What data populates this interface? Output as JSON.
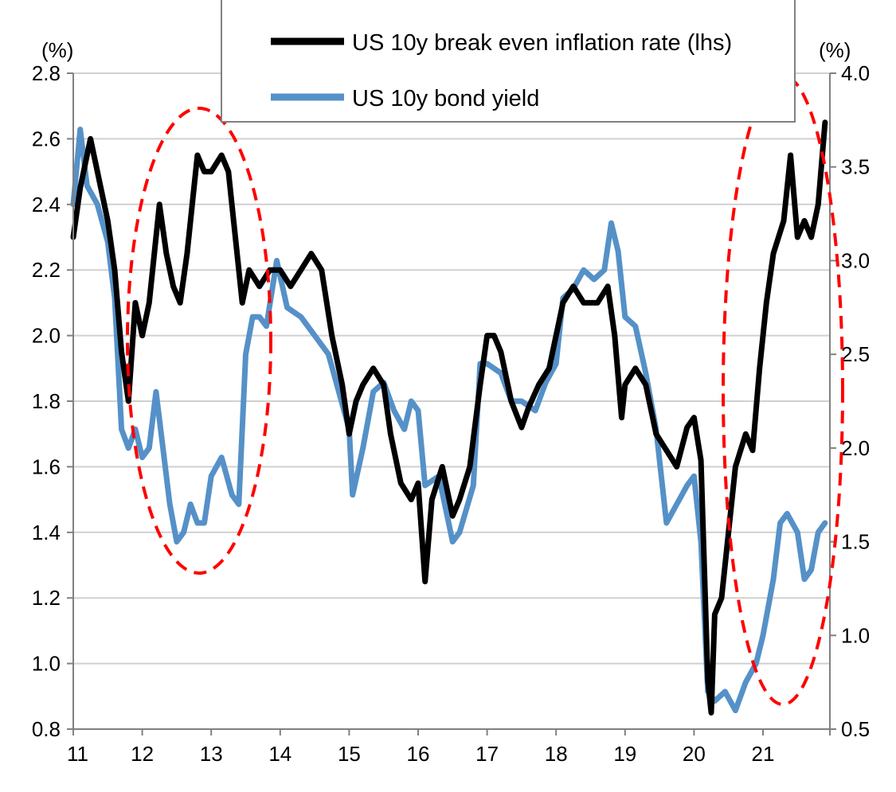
{
  "chart_data": {
    "type": "line",
    "title": "",
    "xlabel": "",
    "y_left_label": "(%)",
    "y_right_label": "(%)",
    "xlim": [
      11,
      21.97
    ],
    "ylim_left": [
      0.8,
      2.8
    ],
    "ylim_right": [
      0.5,
      4.0
    ],
    "x_ticks": [
      11,
      12,
      13,
      14,
      15,
      16,
      17,
      18,
      19,
      20,
      21
    ],
    "x_tick_labels": [
      "11",
      "12",
      "13",
      "14",
      "15",
      "16",
      "17",
      "18",
      "19",
      "20",
      "21"
    ],
    "y_left_ticks": [
      0.8,
      1.0,
      1.2,
      1.4,
      1.6,
      1.8,
      2.0,
      2.2,
      2.4,
      2.6,
      2.8
    ],
    "y_left_tick_labels": [
      "0.8",
      "1.0",
      "1.2",
      "1.4",
      "1.6",
      "1.8",
      "2.0",
      "2.2",
      "2.4",
      "2.6",
      "2.8"
    ],
    "y_right_ticks": [
      0.5,
      1.0,
      1.5,
      2.0,
      2.5,
      3.0,
      3.5,
      4.0
    ],
    "y_right_tick_labels": [
      "0.5",
      "1.0",
      "1.5",
      "2.0",
      "2.5",
      "3.0",
      "3.5",
      "4.0"
    ],
    "grid": "horizontal",
    "legend_position": "top-center",
    "series": [
      {
        "name": "US 10y break even inflation rate (lhs)",
        "axis": "left",
        "color": "#000000",
        "x": [
          11.0,
          11.1,
          11.25,
          11.35,
          11.5,
          11.6,
          11.7,
          11.8,
          11.9,
          12.0,
          12.1,
          12.2,
          12.25,
          12.35,
          12.45,
          12.55,
          12.65,
          12.75,
          12.8,
          12.9,
          13.0,
          13.15,
          13.25,
          13.35,
          13.45,
          13.55,
          13.7,
          13.85,
          14.0,
          14.15,
          14.3,
          14.45,
          14.6,
          14.75,
          14.9,
          15.0,
          15.1,
          15.2,
          15.35,
          15.5,
          15.6,
          15.75,
          15.9,
          16.0,
          16.1,
          16.2,
          16.35,
          16.5,
          16.6,
          16.75,
          16.9,
          17.0,
          17.1,
          17.2,
          17.35,
          17.5,
          17.6,
          17.75,
          17.9,
          18.0,
          18.1,
          18.25,
          18.4,
          18.6,
          18.75,
          18.85,
          18.95,
          19.0,
          19.15,
          19.3,
          19.45,
          19.6,
          19.75,
          19.9,
          20.0,
          20.1,
          20.2,
          20.25,
          20.3,
          20.4,
          20.5,
          20.6,
          20.75,
          20.85,
          20.95,
          21.05,
          21.15,
          21.3,
          21.4,
          21.5,
          21.6,
          21.7,
          21.8,
          21.9
        ],
        "y": [
          2.3,
          2.45,
          2.6,
          2.5,
          2.35,
          2.2,
          1.95,
          1.8,
          2.1,
          2.0,
          2.1,
          2.3,
          2.4,
          2.25,
          2.15,
          2.1,
          2.25,
          2.45,
          2.55,
          2.5,
          2.5,
          2.55,
          2.5,
          2.3,
          2.1,
          2.2,
          2.15,
          2.2,
          2.2,
          2.15,
          2.2,
          2.25,
          2.2,
          2.0,
          1.85,
          1.7,
          1.8,
          1.85,
          1.9,
          1.85,
          1.7,
          1.55,
          1.5,
          1.55,
          1.25,
          1.5,
          1.6,
          1.45,
          1.5,
          1.6,
          1.85,
          2.0,
          2.0,
          1.95,
          1.8,
          1.72,
          1.78,
          1.85,
          1.9,
          2.0,
          2.1,
          2.15,
          2.1,
          2.1,
          2.15,
          2.0,
          1.75,
          1.85,
          1.9,
          1.85,
          1.7,
          1.65,
          1.6,
          1.72,
          1.75,
          1.62,
          0.95,
          0.85,
          1.15,
          1.2,
          1.4,
          1.6,
          1.7,
          1.65,
          1.9,
          2.1,
          2.25,
          2.35,
          2.55,
          2.3,
          2.35,
          2.3,
          2.4,
          2.65
        ]
      },
      {
        "name": "US 10y bond yield",
        "axis": "right",
        "color": "#5591c8",
        "x": [
          11.0,
          11.1,
          11.2,
          11.35,
          11.5,
          11.6,
          11.7,
          11.8,
          11.9,
          12.0,
          12.1,
          12.2,
          12.3,
          12.4,
          12.5,
          12.6,
          12.7,
          12.8,
          12.9,
          13.0,
          13.15,
          13.3,
          13.4,
          13.5,
          13.6,
          13.7,
          13.8,
          13.95,
          14.1,
          14.3,
          14.5,
          14.7,
          14.85,
          15.0,
          15.05,
          15.2,
          15.35,
          15.5,
          15.65,
          15.8,
          15.9,
          16.0,
          16.1,
          16.3,
          16.5,
          16.6,
          16.8,
          16.9,
          17.0,
          17.2,
          17.35,
          17.5,
          17.7,
          17.85,
          18.0,
          18.1,
          18.25,
          18.4,
          18.55,
          18.7,
          18.8,
          18.9,
          19.0,
          19.15,
          19.3,
          19.45,
          19.6,
          19.75,
          19.9,
          20.0,
          20.1,
          20.2,
          20.3,
          20.45,
          20.6,
          20.75,
          20.9,
          21.0,
          21.15,
          21.25,
          21.35,
          21.5,
          21.6,
          21.7,
          21.8,
          21.9
        ],
        "y": [
          3.3,
          3.7,
          3.4,
          3.3,
          3.1,
          2.8,
          2.1,
          2.0,
          2.1,
          1.95,
          2.0,
          2.3,
          2.0,
          1.7,
          1.5,
          1.55,
          1.7,
          1.6,
          1.6,
          1.85,
          1.95,
          1.75,
          1.7,
          2.5,
          2.7,
          2.7,
          2.65,
          3.0,
          2.75,
          2.7,
          2.6,
          2.5,
          2.3,
          2.1,
          1.75,
          2.0,
          2.3,
          2.35,
          2.2,
          2.1,
          2.25,
          2.2,
          1.8,
          1.85,
          1.5,
          1.55,
          1.8,
          2.45,
          2.45,
          2.4,
          2.25,
          2.25,
          2.2,
          2.35,
          2.45,
          2.8,
          2.85,
          2.95,
          2.9,
          2.95,
          3.2,
          3.05,
          2.7,
          2.65,
          2.4,
          2.1,
          1.6,
          1.7,
          1.8,
          1.85,
          1.5,
          0.7,
          0.65,
          0.7,
          0.6,
          0.75,
          0.85,
          1.0,
          1.3,
          1.6,
          1.65,
          1.55,
          1.3,
          1.35,
          1.55,
          1.6
        ]
      }
    ],
    "annotations": [
      "dashed red ellipse around 2012-2013 divergence",
      "dashed red ellipse around 2020-2021 divergence"
    ]
  }
}
